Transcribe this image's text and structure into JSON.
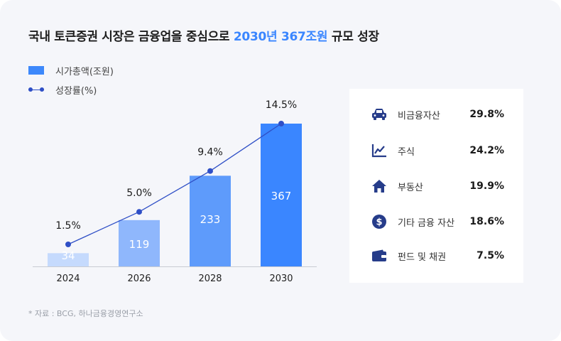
{
  "title": {
    "prefix": "국내 토큰증권 시장은 금융업을 중심으로",
    "highlight": "2030년 367조원",
    "suffix": "규모 성장"
  },
  "legend": {
    "bar_label": "시가총액(조원)",
    "line_label": "성장률(%)"
  },
  "chart_data": {
    "type": "bar",
    "categories": [
      "2024",
      "2026",
      "2028",
      "2030"
    ],
    "series": [
      {
        "name": "시가총액(조원)",
        "type": "bar",
        "values": [
          34,
          119,
          233,
          367
        ],
        "labels": [
          "34",
          "119",
          "233",
          "367"
        ]
      },
      {
        "name": "성장률(%)",
        "type": "line",
        "values": [
          1.5,
          5.0,
          9.4,
          14.5
        ],
        "labels": [
          "1.5%",
          "5.0%",
          "9.4%",
          "14.5%"
        ]
      }
    ],
    "bar_colors": [
      "#c5dafd",
      "#8fb7fc",
      "#5e9bfb",
      "#3a86ff"
    ],
    "line_color": "#2f4fc6",
    "ylim": [
      0,
      367
    ],
    "grid": false
  },
  "breakdown": [
    {
      "icon": "car-icon",
      "label": "비금융자산",
      "value": "29.8%"
    },
    {
      "icon": "chart-line-icon",
      "label": "주식",
      "value": "24.2%"
    },
    {
      "icon": "house-icon",
      "label": "부동산",
      "value": "19.9%"
    },
    {
      "icon": "dollar-coin-icon",
      "label": "기타 금융 자산",
      "value": "18.6%"
    },
    {
      "icon": "wallet-icon",
      "label": "펀드 및 채권",
      "value": "7.5%"
    }
  ],
  "icon_color": "#263c8a",
  "source": "* 자료 : BCG, 하나금융경영연구소"
}
